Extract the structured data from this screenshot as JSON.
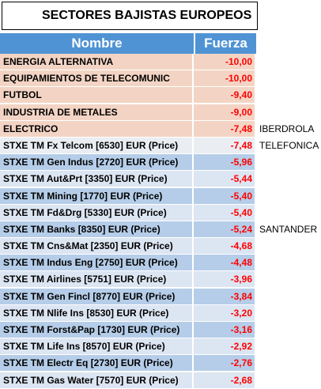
{
  "title": "SECTORES BAJISTAS EUROPEOS",
  "header": {
    "name": "Nombre",
    "force": "Fuerza"
  },
  "rows": [
    {
      "name": "ENERGIA ALTERNATIVA",
      "force": "-10,00",
      "note": "",
      "style": "peach"
    },
    {
      "name": "EQUIPAMIENTOS DE TELECOMUNIC",
      "force": "-10,00",
      "note": "",
      "style": "peach"
    },
    {
      "name": "FUTBOL",
      "force": "-9,40",
      "note": "",
      "style": "peach"
    },
    {
      "name": "INDUSTRIA DE METALES",
      "force": "-9,00",
      "note": "",
      "style": "peach"
    },
    {
      "name": "ELECTRICO",
      "force": "-7,48",
      "note": "IBERDROLA",
      "style": "peach"
    },
    {
      "name": "STXE TM Fx Telcom [6530] EUR (Price)",
      "force": "-7,48",
      "note": "TELEFONICA",
      "style": "white"
    },
    {
      "name": "STXE TM Gen Indus [2720] EUR (Price)",
      "force": "-5,96",
      "note": "",
      "style": "blue"
    },
    {
      "name": "STXE TM Aut&Prt [3350] EUR (Price)",
      "force": "-5,44",
      "note": "",
      "style": "lightblue"
    },
    {
      "name": "STXE TM Mining [1770] EUR (Price)",
      "force": "-5,40",
      "note": "",
      "style": "blue"
    },
    {
      "name": "STXE TM Fd&Drg [5330] EUR (Price)",
      "force": "-5,40",
      "note": "",
      "style": "lightblue"
    },
    {
      "name": "STXE TM Banks [8350] EUR (Price)",
      "force": "-5,24",
      "note": "SANTANDER",
      "style": "blue"
    },
    {
      "name": "STXE TM Cns&Mat [2350] EUR (Price)",
      "force": "-4,68",
      "note": "",
      "style": "lightblue"
    },
    {
      "name": "STXE TM Indus Eng [2750] EUR (Price)",
      "force": "-4,48",
      "note": "",
      "style": "blue"
    },
    {
      "name": "STXE TM Airlines [5751] EUR (Price)",
      "force": "-3,96",
      "note": "",
      "style": "lightblue"
    },
    {
      "name": "STXE TM Gen Fincl [8770] EUR (Price)",
      "force": "-3,84",
      "note": "",
      "style": "blue"
    },
    {
      "name": "STXE TM Nlife Ins [8530] EUR (Price)",
      "force": "-3,20",
      "note": "",
      "style": "lightblue"
    },
    {
      "name": "STXE TM Forst&Pap [1730] EUR (Price)",
      "force": "-3,16",
      "note": "",
      "style": "blue"
    },
    {
      "name": "STXE TM Life Ins [8570] EUR (Price)",
      "force": "-2,92",
      "note": "",
      "style": "lightblue"
    },
    {
      "name": "STXE TM Electr Eq [2730] EUR (Price)",
      "force": "-2,76",
      "note": "",
      "style": "blue"
    },
    {
      "name": "STXE TM Gas Water [7570] EUR (Price)",
      "force": "-2,68",
      "note": "",
      "style": "lightblue"
    }
  ]
}
